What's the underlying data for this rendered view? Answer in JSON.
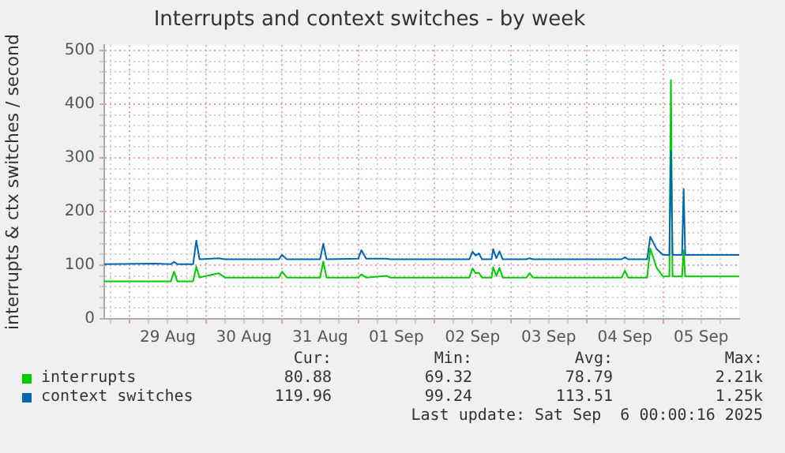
{
  "chart_data": {
    "type": "line",
    "title": "Interrupts and context switches - by week",
    "ylabel": "interrupts & ctx switches / second",
    "x": [
      "2025-08-28T16:00",
      "2025-08-29T08:00",
      "2025-08-29T13:00",
      "2025-08-29T14:00",
      "2025-08-29T15:00",
      "2025-08-29T20:00",
      "2025-08-29T21:00",
      "2025-08-29T22:00",
      "2025-08-30T04:00",
      "2025-08-30T06:00",
      "2025-08-30T23:00",
      "2025-08-31T00:00",
      "2025-08-31T01:30",
      "2025-08-31T12:00",
      "2025-08-31T13:00",
      "2025-08-31T14:00",
      "2025-09-01T00:00",
      "2025-09-01T01:00",
      "2025-09-01T02:30",
      "2025-09-01T09:00",
      "2025-09-01T10:00",
      "2025-09-02T11:00",
      "2025-09-02T12:00",
      "2025-09-02T13:00",
      "2025-09-02T14:00",
      "2025-09-02T15:00",
      "2025-09-02T18:00",
      "2025-09-02T18:30",
      "2025-09-02T19:30",
      "2025-09-02T20:30",
      "2025-09-02T21:30",
      "2025-09-03T05:00",
      "2025-09-03T06:00",
      "2025-09-03T07:00",
      "2025-09-04T11:00",
      "2025-09-04T12:00",
      "2025-09-04T13:00",
      "2025-09-04T19:00",
      "2025-09-04T20:00",
      "2025-09-04T22:00",
      "2025-09-05T00:00",
      "2025-09-05T02:00",
      "2025-09-05T02:30",
      "2025-09-05T03:00",
      "2025-09-05T06:00",
      "2025-09-05T06:30",
      "2025-09-05T07:00",
      "2025-09-06T00:00"
    ],
    "series": [
      {
        "name": "interrupts",
        "color": "#00cc00",
        "values": [
          70,
          70,
          70,
          88,
          70,
          70,
          97,
          77,
          85,
          77,
          77,
          88,
          77,
          77,
          107,
          77,
          77,
          83,
          77,
          80,
          77,
          77,
          94,
          85,
          86,
          77,
          77,
          96,
          80,
          95,
          77,
          77,
          85,
          77,
          77,
          90,
          77,
          77,
          131,
          95,
          79,
          79,
          445,
          79,
          79,
          128,
          79,
          79
        ]
      },
      {
        "name": "context switches",
        "color": "#0066b3",
        "values": [
          102,
          103,
          102,
          106,
          102,
          102,
          146,
          111,
          113,
          111,
          111,
          119,
          111,
          111,
          140,
          111,
          112,
          128,
          112,
          112,
          111,
          111,
          125,
          118,
          122,
          111,
          111,
          130,
          113,
          126,
          111,
          111,
          113,
          111,
          111,
          115,
          111,
          111,
          153,
          130,
          119,
          119,
          313,
          119,
          119,
          242,
          119,
          119
        ]
      }
    ],
    "xlim": [
      "2025-08-28T16:00",
      "2025-09-06T00:00"
    ],
    "xticks": [
      {
        "value": "2025-08-28T18:00",
        "label": null
      },
      {
        "value": "2025-08-29T00:00",
        "label": null
      },
      {
        "value": "2025-08-29T06:00",
        "label": null
      },
      {
        "value": "2025-08-29T12:00",
        "label": "29 Aug"
      },
      {
        "value": "2025-08-29T18:00",
        "label": null
      },
      {
        "value": "2025-08-30T00:00",
        "label": null
      },
      {
        "value": "2025-08-30T06:00",
        "label": null
      },
      {
        "value": "2025-08-30T12:00",
        "label": "30 Aug"
      },
      {
        "value": "2025-08-30T18:00",
        "label": null
      },
      {
        "value": "2025-08-31T00:00",
        "label": null
      },
      {
        "value": "2025-08-31T06:00",
        "label": null
      },
      {
        "value": "2025-08-31T12:00",
        "label": "31 Aug"
      },
      {
        "value": "2025-08-31T18:00",
        "label": null
      },
      {
        "value": "2025-09-01T00:00",
        "label": null
      },
      {
        "value": "2025-09-01T06:00",
        "label": null
      },
      {
        "value": "2025-09-01T12:00",
        "label": "01 Sep"
      },
      {
        "value": "2025-09-01T18:00",
        "label": null
      },
      {
        "value": "2025-09-02T00:00",
        "label": null
      },
      {
        "value": "2025-09-02T06:00",
        "label": null
      },
      {
        "value": "2025-09-02T12:00",
        "label": "02 Sep"
      },
      {
        "value": "2025-09-02T18:00",
        "label": null
      },
      {
        "value": "2025-09-03T00:00",
        "label": null
      },
      {
        "value": "2025-09-03T06:00",
        "label": null
      },
      {
        "value": "2025-09-03T12:00",
        "label": "03 Sep"
      },
      {
        "value": "2025-09-03T18:00",
        "label": null
      },
      {
        "value": "2025-09-04T00:00",
        "label": null
      },
      {
        "value": "2025-09-04T06:00",
        "label": null
      },
      {
        "value": "2025-09-04T12:00",
        "label": "04 Sep"
      },
      {
        "value": "2025-09-04T18:00",
        "label": null
      },
      {
        "value": "2025-09-05T00:00",
        "label": null
      },
      {
        "value": "2025-09-05T06:00",
        "label": null
      },
      {
        "value": "2025-09-05T12:00",
        "label": "05 Sep"
      },
      {
        "value": "2025-09-05T18:00",
        "label": null
      }
    ],
    "ylim": [
      0,
      510
    ],
    "yticks": [
      0,
      {
        "value": 20,
        "label": null
      },
      {
        "value": 40,
        "label": null
      },
      {
        "value": 60,
        "label": null
      },
      {
        "value": 80,
        "label": null
      },
      100,
      {
        "value": 120,
        "label": null
      },
      {
        "value": 140,
        "label": null
      },
      {
        "value": 160,
        "label": null
      },
      {
        "value": 180,
        "label": null
      },
      200,
      {
        "value": 220,
        "label": null
      },
      {
        "value": 240,
        "label": null
      },
      {
        "value": 260,
        "label": null
      },
      {
        "value": 280,
        "label": null
      },
      300,
      {
        "value": 320,
        "label": null
      },
      {
        "value": 340,
        "label": null
      },
      {
        "value": 360,
        "label": null
      },
      {
        "value": 380,
        "label": null
      },
      400,
      {
        "value": 420,
        "label": null
      },
      {
        "value": 440,
        "label": null
      },
      {
        "value": 460,
        "label": null
      },
      {
        "value": 480,
        "label": null
      },
      500
    ],
    "grid": true,
    "legend": "bottom",
    "marker": "none",
    "line_style": "solid",
    "annotations": [
      "Cur:",
      "Min:",
      "Avg:",
      "Max:",
      "80.88",
      "69.32",
      "78.79",
      "2.21k",
      "119.96",
      "99.24",
      "113.51",
      "1.25k",
      "Last update: Sat Sep  6 00:00:16 2025"
    ]
  }
}
